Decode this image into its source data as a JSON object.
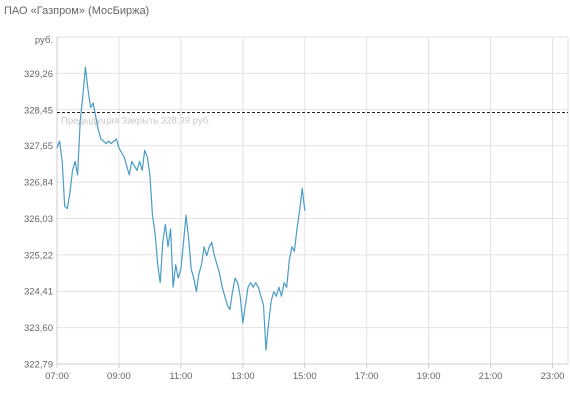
{
  "title": "ПАО «Газпром» (МосБиржа)",
  "chart_data": {
    "type": "line",
    "title": "ПАО «Газпром» (МосБиржа)",
    "xlabel": "",
    "ylabel": "",
    "y_unit": "руб.",
    "x_ticks": [
      "07:00",
      "09:00",
      "11:00",
      "13:00",
      "15:00",
      "17:00",
      "19:00",
      "21:00",
      "23:00"
    ],
    "y_ticks": [
      "322,79",
      "323,60",
      "324,41",
      "325,22",
      "326,03",
      "326,84",
      "327,65",
      "328,45",
      "329,26"
    ],
    "xlim": [
      "07:00",
      "23:30"
    ],
    "ylim": [
      322.79,
      330.07
    ],
    "grid": true,
    "line_color": "#4a9cc4",
    "reference_line": {
      "label": "Предыдущая Закрыть 328,39 руб.",
      "value": 328.39,
      "color": "#222222",
      "style": "dashed"
    },
    "series": [
      {
        "points": [
          [
            "07:00",
            327.6
          ],
          [
            "07:05",
            327.75
          ],
          [
            "07:10",
            327.3
          ],
          [
            "07:15",
            326.3
          ],
          [
            "07:20",
            326.25
          ],
          [
            "07:25",
            326.6
          ],
          [
            "07:30",
            327.1
          ],
          [
            "07:35",
            327.3
          ],
          [
            "07:40",
            327.0
          ],
          [
            "07:45",
            328.2
          ],
          [
            "07:50",
            328.75
          ],
          [
            "07:55",
            329.4
          ],
          [
            "08:00",
            328.9
          ],
          [
            "08:05",
            328.5
          ],
          [
            "08:10",
            328.6
          ],
          [
            "08:15",
            328.3
          ],
          [
            "08:20",
            328.0
          ],
          [
            "08:25",
            327.8
          ],
          [
            "08:30",
            327.75
          ],
          [
            "08:35",
            327.7
          ],
          [
            "08:40",
            327.75
          ],
          [
            "08:45",
            327.7
          ],
          [
            "08:50",
            327.75
          ],
          [
            "08:55",
            327.8
          ],
          [
            "09:00",
            327.6
          ],
          [
            "09:05",
            327.5
          ],
          [
            "09:10",
            327.4
          ],
          [
            "09:15",
            327.2
          ],
          [
            "09:20",
            327.0
          ],
          [
            "09:25",
            327.3
          ],
          [
            "09:30",
            327.2
          ],
          [
            "09:35",
            327.1
          ],
          [
            "09:40",
            327.3
          ],
          [
            "09:45",
            327.1
          ],
          [
            "09:50",
            327.55
          ],
          [
            "09:55",
            327.4
          ],
          [
            "10:00",
            327.0
          ],
          [
            "10:05",
            326.1
          ],
          [
            "10:10",
            325.7
          ],
          [
            "10:15",
            325.0
          ],
          [
            "10:20",
            324.6
          ],
          [
            "10:25",
            325.5
          ],
          [
            "10:30",
            325.9
          ],
          [
            "10:35",
            325.4
          ],
          [
            "10:40",
            325.8
          ],
          [
            "10:45",
            324.5
          ],
          [
            "10:50",
            325.0
          ],
          [
            "10:55",
            324.7
          ],
          [
            "11:00",
            324.9
          ],
          [
            "11:05",
            325.5
          ],
          [
            "11:10",
            326.1
          ],
          [
            "11:15",
            325.6
          ],
          [
            "11:20",
            324.9
          ],
          [
            "11:25",
            324.7
          ],
          [
            "11:30",
            324.4
          ],
          [
            "11:35",
            324.8
          ],
          [
            "11:40",
            325.0
          ],
          [
            "11:45",
            325.4
          ],
          [
            "11:50",
            325.2
          ],
          [
            "11:55",
            325.4
          ],
          [
            "12:00",
            325.5
          ],
          [
            "12:05",
            325.2
          ],
          [
            "12:10",
            325.0
          ],
          [
            "12:15",
            324.8
          ],
          [
            "12:20",
            324.5
          ],
          [
            "12:25",
            324.3
          ],
          [
            "12:30",
            324.1
          ],
          [
            "12:35",
            324.0
          ],
          [
            "12:40",
            324.4
          ],
          [
            "12:45",
            324.7
          ],
          [
            "12:50",
            324.6
          ],
          [
            "12:55",
            324.3
          ],
          [
            "13:00",
            323.7
          ],
          [
            "13:05",
            324.1
          ],
          [
            "13:10",
            324.5
          ],
          [
            "13:15",
            324.6
          ],
          [
            "13:20",
            324.5
          ],
          [
            "13:25",
            324.6
          ],
          [
            "13:30",
            324.5
          ],
          [
            "13:35",
            324.3
          ],
          [
            "13:40",
            324.1
          ],
          [
            "13:45",
            323.1
          ],
          [
            "13:50",
            323.7
          ],
          [
            "13:55",
            324.2
          ],
          [
            "14:00",
            324.4
          ],
          [
            "14:05",
            324.3
          ],
          [
            "14:10",
            324.5
          ],
          [
            "14:15",
            324.3
          ],
          [
            "14:20",
            324.6
          ],
          [
            "14:25",
            324.5
          ],
          [
            "14:30",
            325.1
          ],
          [
            "14:35",
            325.4
          ],
          [
            "14:40",
            325.3
          ],
          [
            "14:45",
            325.8
          ],
          [
            "14:50",
            326.2
          ],
          [
            "14:55",
            326.7
          ],
          [
            "15:00",
            326.2
          ]
        ]
      }
    ]
  }
}
